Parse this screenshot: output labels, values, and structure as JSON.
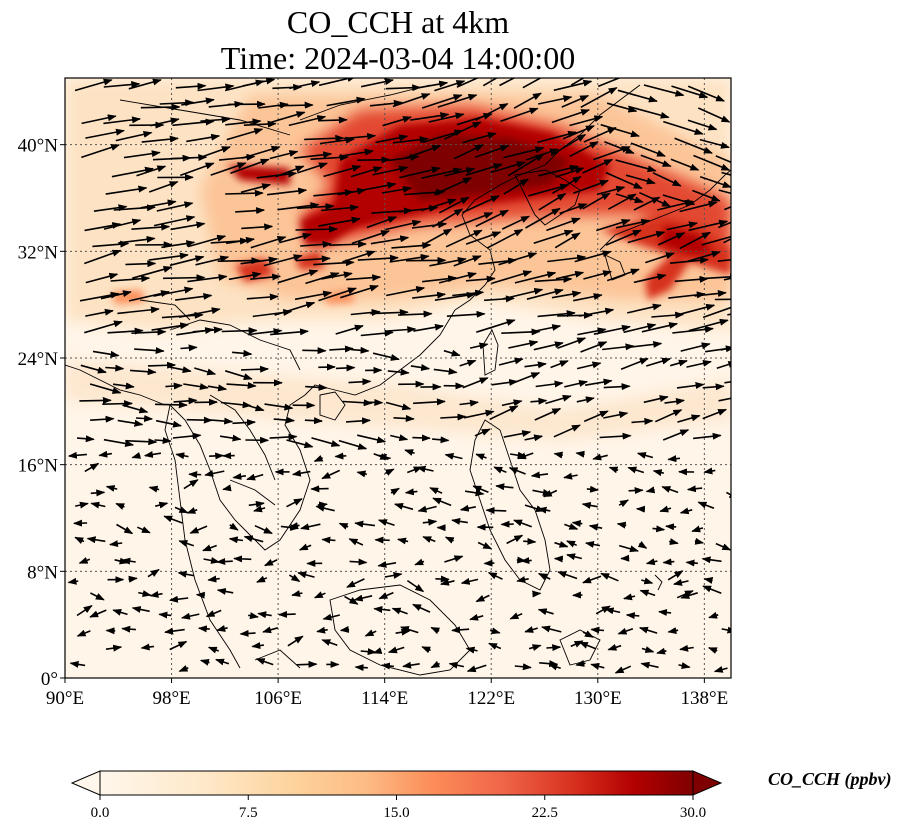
{
  "map": {
    "title_line1": "CO_CCH at 4km",
    "title_line2": "Time: 2024-03-04 14:00:00",
    "lon_range": [
      90,
      140
    ],
    "lat_range": [
      0,
      45
    ],
    "lon_ticks": [
      90,
      98,
      106,
      114,
      122,
      130,
      138
    ],
    "lat_ticks": [
      0,
      8,
      16,
      24,
      32,
      40
    ],
    "lon_tick_labels": [
      "90°E",
      "98°E",
      "106°E",
      "114°E",
      "122°E",
      "130°E",
      "138°E"
    ],
    "lat_tick_labels": [
      "0°",
      "8°N",
      "16°N",
      "24°N",
      "32°N",
      "40°N"
    ],
    "gridlines": "dotted",
    "layers": [
      "filled-contour",
      "wind-vectors",
      "coastlines"
    ],
    "colormap": "OrRd",
    "colors": {
      "low": "#fff7ec",
      "mid": "#fdbb84",
      "high": "#7f0000"
    }
  },
  "colorbar": {
    "label": "CO_CCH (ppbv)",
    "min": 0.0,
    "max": 30.0,
    "extend": "both",
    "ticks": [
      0.0,
      7.5,
      15.0,
      22.5,
      30.0
    ],
    "tick_labels": [
      "0.0",
      "7.5",
      "15.0",
      "22.5",
      "30.0"
    ]
  }
}
